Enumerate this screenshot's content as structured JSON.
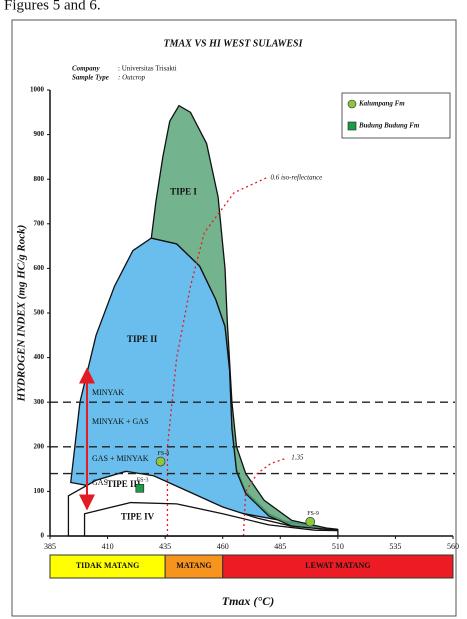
{
  "page_caption": "Figures 5 and 6.",
  "chart_data": {
    "type": "scatter",
    "title": "TMAX VS HI  WEST SULAWESI",
    "company_label": "Company",
    "company": ": Universitas Trisakti",
    "sample_type_label": "Sample Type",
    "sample_type": ": Outcrop",
    "x_label": "Tmax (°C)",
    "y_label": "HYDROGEN INDEX  (mg HC/g Rock)",
    "xlim": [
      385,
      560
    ],
    "xticks": [
      385,
      410,
      435,
      460,
      485,
      510,
      535,
      560
    ],
    "ylim": [
      0,
      1000
    ],
    "yticks": [
      0,
      100,
      200,
      300,
      400,
      500,
      600,
      700,
      800,
      900,
      1000
    ],
    "legend_position": "upper right",
    "series": [
      {
        "name": "Kalumpang Fm",
        "color": "#8dc63f",
        "marker": "circle",
        "x": [
          433,
          498
        ],
        "y": [
          167,
          32
        ],
        "point_labels": [
          "FS-8",
          "FS-9"
        ]
      },
      {
        "name": "Budung Budung Fm",
        "color": "#1e9a4a",
        "marker": "square",
        "x": [
          424
        ],
        "y": [
          107
        ],
        "point_labels": [
          "FS-3"
        ]
      }
    ],
    "regions": [
      {
        "label": "TIPE II",
        "color": "#4fb3ea",
        "label_x": 425,
        "label_y": 440,
        "x": [
          394,
          398,
          405,
          413,
          421,
          429,
          440,
          450,
          457,
          461,
          463,
          464,
          466,
          470,
          480,
          490,
          500,
          510
        ],
        "y": [
          120,
          300,
          450,
          560,
          640,
          668,
          655,
          605,
          530,
          470,
          380,
          250,
          150,
          100,
          50,
          25,
          15,
          12
        ]
      },
      {
        "label": "TIPE I",
        "color": "#5aa77a",
        "label_x": 443,
        "label_y": 770,
        "x": [
          429,
          431,
          434,
          437,
          441,
          446,
          453,
          458,
          461,
          462,
          464,
          466,
          470,
          478,
          490,
          505,
          510,
          500,
          490,
          480,
          470,
          466,
          464,
          463,
          461,
          457,
          450,
          440
        ],
        "y": [
          668,
          750,
          850,
          930,
          965,
          950,
          880,
          760,
          600,
          480,
          300,
          200,
          140,
          80,
          35,
          18,
          15,
          12,
          22,
          45,
          95,
          145,
          240,
          370,
          470,
          530,
          605,
          655
        ]
      },
      {
        "label": "TIPE III",
        "color": "#ffffff",
        "label_x": 417,
        "label_y": 115,
        "x": [
          393,
          405,
          418,
          430,
          445,
          460,
          475,
          490,
          505,
          510,
          510,
          393
        ],
        "y": [
          90,
          125,
          145,
          135,
          100,
          65,
          40,
          22,
          15,
          14,
          0,
          0
        ]
      },
      {
        "label": "TIPE IV",
        "color": "#ffffff",
        "label_x": 423,
        "label_y": 42,
        "x": [
          400,
          420,
          440,
          460,
          480,
          500,
          510,
          510,
          400
        ],
        "y": [
          50,
          75,
          72,
          50,
          25,
          13,
          12,
          0,
          0
        ]
      }
    ],
    "iso_lines": [
      {
        "label": "0.6 iso-reflectance",
        "color": "#e31b23",
        "x": [
          436,
          436,
          440,
          446,
          452,
          465,
          479
        ],
        "y": [
          0,
          200,
          400,
          560,
          680,
          770,
          803
        ]
      },
      {
        "label": "1.35",
        "color": "#e31b23",
        "x": [
          469,
          470,
          475,
          481,
          488
        ],
        "y": [
          0,
          100,
          140,
          163,
          175
        ]
      }
    ],
    "hlines": [
      300,
      200,
      140
    ],
    "zones": [
      {
        "label": "MINYAK",
        "y": 320
      },
      {
        "label": "MINYAK + GAS",
        "y": 255
      },
      {
        "label": "GAS + MINYAK",
        "y": 172
      },
      {
        "label": "GAS",
        "y": 118
      }
    ],
    "maturity": [
      {
        "label": "TIDAK MATANG",
        "from": 385,
        "to": 435,
        "color": "#ffff00"
      },
      {
        "label": "MATANG",
        "from": 435,
        "to": 460,
        "color": "#f7941d"
      },
      {
        "label": "LEWAT MATANG",
        "from": 460,
        "to": 560,
        "color": "#ed1c24"
      }
    ]
  }
}
